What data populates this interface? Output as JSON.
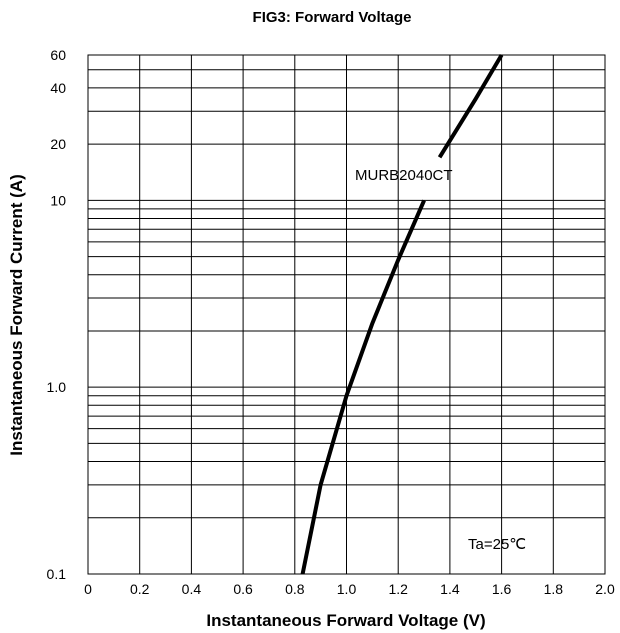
{
  "chart_data": {
    "type": "line",
    "title": "FIG3: Forward Voltage",
    "xlabel": "Instantaneous Forward Voltage (V)",
    "ylabel": "Instantaneous Forward Current (A)",
    "xlim": [
      0,
      2.0
    ],
    "ylim": [
      0.1,
      60
    ],
    "y_scale": "log",
    "grid": true,
    "x_ticks": [
      0,
      0.2,
      0.4,
      0.6,
      0.8,
      1.0,
      1.2,
      1.4,
      1.6,
      1.8,
      2.0
    ],
    "x_tick_labels": [
      "0",
      "0.2",
      "0.4",
      "0.6",
      "0.8",
      "1.0",
      "1.2",
      "1.4",
      "1.6",
      "1.8",
      "2.0"
    ],
    "y_tick_labels": [
      {
        "value": 0.1,
        "label": "0.1"
      },
      {
        "value": 1.0,
        "label": "1.0"
      },
      {
        "value": 10,
        "label": "10"
      },
      {
        "value": 20,
        "label": "20"
      },
      {
        "value": 40,
        "label": "40"
      },
      {
        "value": 60,
        "label": "60"
      }
    ],
    "series": [
      {
        "name": "MURB2040CT",
        "x": [
          0.83,
          0.9,
          1.0,
          1.1,
          1.2,
          1.3,
          1.36,
          1.5,
          1.6
        ],
        "y": [
          0.1,
          0.3,
          0.9,
          2.2,
          4.8,
          10,
          17,
          35,
          60
        ]
      }
    ],
    "annotations": [
      {
        "text": "Ta=25℃"
      }
    ]
  }
}
